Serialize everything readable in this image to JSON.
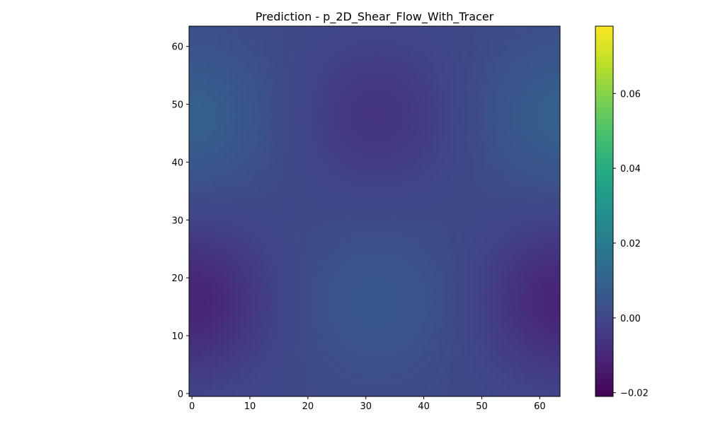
{
  "chart_data": {
    "type": "heatmap",
    "title": "Prediction - p_2D_Shear_Flow_With_Tracer",
    "xlabel": "",
    "ylabel": "",
    "xlim": [
      -0.5,
      63.5
    ],
    "ylim": [
      -0.5,
      63.5
    ],
    "x_ticks": [
      0,
      10,
      20,
      30,
      40,
      50,
      60
    ],
    "x_tick_labels": [
      "0",
      "10",
      "20",
      "30",
      "40",
      "50",
      "60"
    ],
    "y_ticks": [
      0,
      10,
      20,
      30,
      40,
      50,
      60
    ],
    "y_tick_labels": [
      "0",
      "10",
      "20",
      "30",
      "40",
      "50",
      "60"
    ],
    "grid_size": [
      64,
      64
    ],
    "colormap": "viridis",
    "colorbar": {
      "min": -0.021,
      "max": 0.078,
      "ticks": [
        -0.02,
        0.0,
        0.02,
        0.04,
        0.06
      ],
      "tick_labels": [
        "−0.02",
        "0.00",
        "0.02",
        "0.04",
        "0.06"
      ]
    },
    "field_features": [
      {
        "x": 32,
        "y": 48,
        "value": -0.006,
        "kind": "minimum"
      },
      {
        "x": 2,
        "y": 16,
        "value": -0.005,
        "kind": "minimum"
      },
      {
        "x": 62,
        "y": 16,
        "value": -0.005,
        "kind": "minimum"
      },
      {
        "x": 32,
        "y": 16,
        "value": 0.006,
        "kind": "maximum"
      },
      {
        "x": 2,
        "y": 48,
        "value": 0.005,
        "kind": "maximum"
      },
      {
        "x": 62,
        "y": 48,
        "value": 0.005,
        "kind": "maximum"
      }
    ],
    "background_value": 0.001
  }
}
